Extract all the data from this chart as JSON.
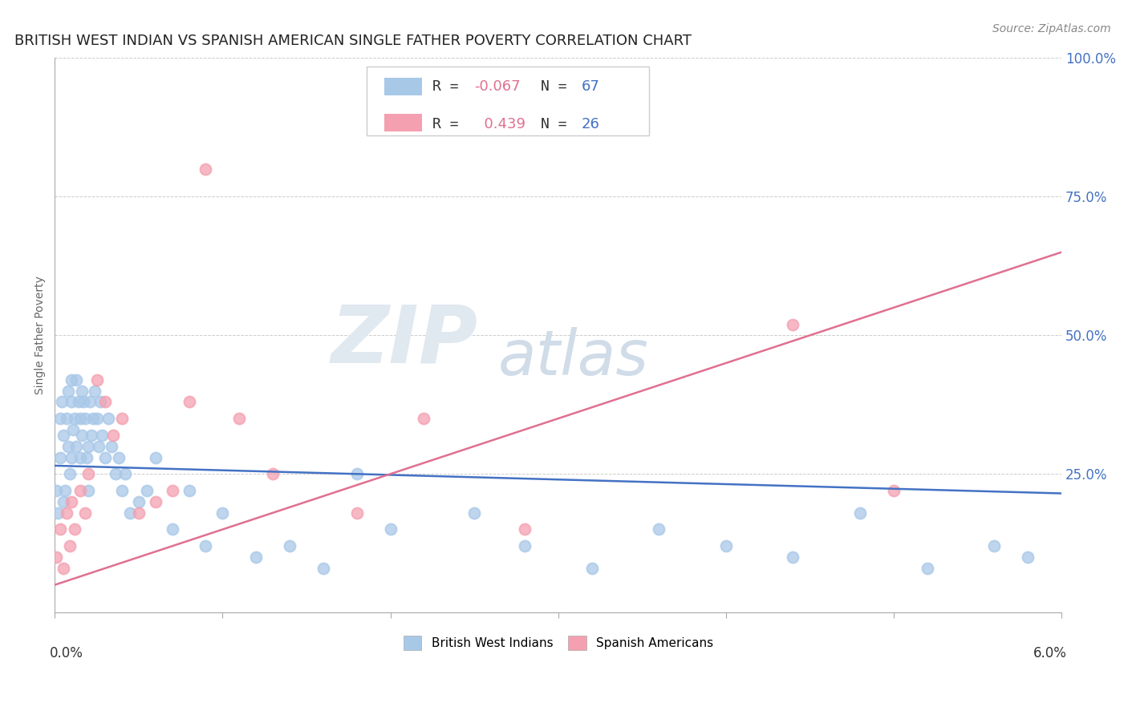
{
  "title": "BRITISH WEST INDIAN VS SPANISH AMERICAN SINGLE FATHER POVERTY CORRELATION CHART",
  "source": "Source: ZipAtlas.com",
  "ylabel": "Single Father Poverty",
  "blue_color": "#a8c8e8",
  "pink_color": "#f4a0b0",
  "blue_line_color": "#4472c4",
  "pink_line_color": "#e07090",
  "title_fontsize": 13,
  "source_fontsize": 10,
  "axis_label_fontsize": 10,
  "legend_fontsize": 13,
  "xlim": [
    0.0,
    0.06
  ],
  "ylim": [
    0.0,
    1.0
  ],
  "yticks": [
    0.0,
    0.25,
    0.5,
    0.75,
    1.0
  ],
  "ytick_labels": [
    "",
    "25.0%",
    "50.0%",
    "75.0%",
    "100.0%"
  ],
  "blue_scatter_x": [
    0.0001,
    0.0002,
    0.0003,
    0.0003,
    0.0004,
    0.0005,
    0.0005,
    0.0006,
    0.0007,
    0.0008,
    0.0008,
    0.0009,
    0.001,
    0.001,
    0.001,
    0.0011,
    0.0012,
    0.0013,
    0.0013,
    0.0014,
    0.0015,
    0.0015,
    0.0016,
    0.0016,
    0.0017,
    0.0018,
    0.0019,
    0.002,
    0.002,
    0.0021,
    0.0022,
    0.0023,
    0.0024,
    0.0025,
    0.0026,
    0.0027,
    0.0028,
    0.003,
    0.0032,
    0.0034,
    0.0036,
    0.0038,
    0.004,
    0.0042,
    0.0045,
    0.005,
    0.0055,
    0.006,
    0.007,
    0.008,
    0.009,
    0.01,
    0.012,
    0.014,
    0.016,
    0.018,
    0.02,
    0.025,
    0.028,
    0.032,
    0.036,
    0.04,
    0.044,
    0.048,
    0.052,
    0.056,
    0.058
  ],
  "blue_scatter_y": [
    0.22,
    0.18,
    0.28,
    0.35,
    0.38,
    0.2,
    0.32,
    0.22,
    0.35,
    0.3,
    0.4,
    0.25,
    0.28,
    0.38,
    0.42,
    0.33,
    0.35,
    0.3,
    0.42,
    0.38,
    0.28,
    0.35,
    0.32,
    0.4,
    0.38,
    0.35,
    0.28,
    0.3,
    0.22,
    0.38,
    0.32,
    0.35,
    0.4,
    0.35,
    0.3,
    0.38,
    0.32,
    0.28,
    0.35,
    0.3,
    0.25,
    0.28,
    0.22,
    0.25,
    0.18,
    0.2,
    0.22,
    0.28,
    0.15,
    0.22,
    0.12,
    0.18,
    0.1,
    0.12,
    0.08,
    0.25,
    0.15,
    0.18,
    0.12,
    0.08,
    0.15,
    0.12,
    0.1,
    0.18,
    0.08,
    0.12,
    0.1
  ],
  "pink_scatter_x": [
    0.0001,
    0.0003,
    0.0005,
    0.0007,
    0.0009,
    0.001,
    0.0012,
    0.0015,
    0.0018,
    0.002,
    0.0025,
    0.003,
    0.0035,
    0.004,
    0.005,
    0.006,
    0.007,
    0.008,
    0.009,
    0.011,
    0.013,
    0.018,
    0.022,
    0.028,
    0.044,
    0.05
  ],
  "pink_scatter_y": [
    0.1,
    0.15,
    0.08,
    0.18,
    0.12,
    0.2,
    0.15,
    0.22,
    0.18,
    0.25,
    0.42,
    0.38,
    0.32,
    0.35,
    0.18,
    0.2,
    0.22,
    0.38,
    0.8,
    0.35,
    0.25,
    0.18,
    0.35,
    0.15,
    0.52,
    0.22
  ]
}
